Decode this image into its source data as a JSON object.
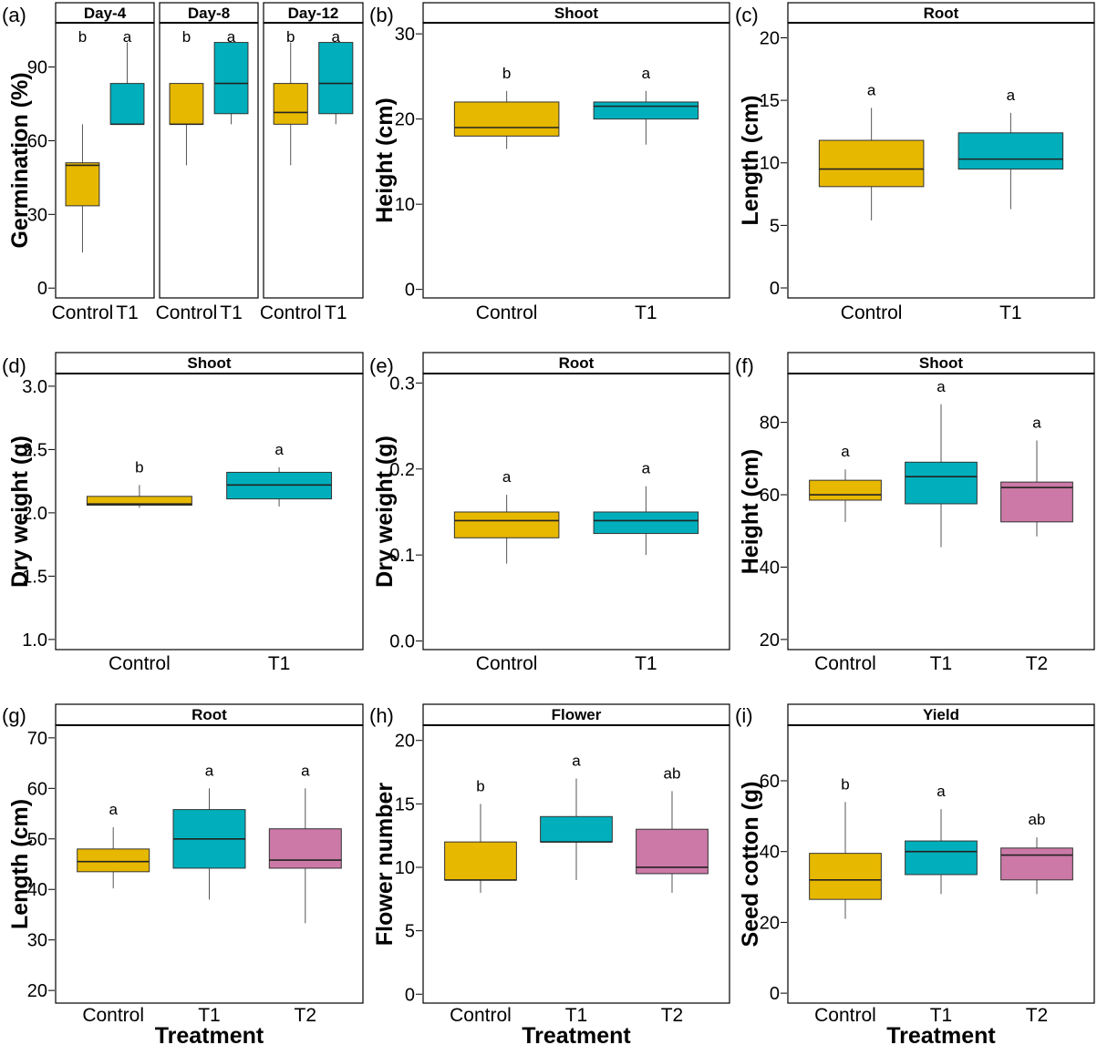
{
  "colors": {
    "Control": "#E7B800",
    "T1": "#00AFBB",
    "T2": "#CC79A7"
  },
  "panels": [
    {
      "id": "a",
      "tag": "(a)",
      "ylabel": "Germination (%)",
      "xlabel": "",
      "yticks": [
        0,
        30,
        60,
        90
      ],
      "ylim": [
        -4,
        108
      ],
      "facets": [
        {
          "strip": "Day-4",
          "categories": [
            "Control",
            "T1"
          ],
          "boxes": [
            {
              "group": "Control",
              "min": 14.5,
              "q1": 33.5,
              "median": 50,
              "q3": 51,
              "max": 66.7,
              "letter": "b"
            },
            {
              "group": "T1",
              "min": 66.7,
              "q1": 66.7,
              "median": 66.7,
              "q3": 83.3,
              "max": 100,
              "letter": "a"
            }
          ]
        },
        {
          "strip": "Day-8",
          "categories": [
            "Control",
            "T1"
          ],
          "boxes": [
            {
              "group": "Control",
              "min": 50,
              "q1": 66.7,
              "median": 66.7,
              "q3": 83.3,
              "max": 83.3,
              "letter": "b"
            },
            {
              "group": "T1",
              "min": 66.7,
              "q1": 71,
              "median": 83.3,
              "q3": 100,
              "max": 100,
              "letter": "a"
            }
          ]
        },
        {
          "strip": "Day-12",
          "categories": [
            "Control",
            "T1"
          ],
          "boxes": [
            {
              "group": "Control",
              "min": 50,
              "q1": 66.7,
              "median": 71.5,
              "q3": 83.3,
              "max": 100,
              "letter": "b"
            },
            {
              "group": "T1",
              "min": 66.7,
              "q1": 71,
              "median": 83.3,
              "q3": 100,
              "max": 100,
              "letter": "a"
            }
          ]
        }
      ]
    },
    {
      "id": "b",
      "tag": "(b)",
      "ylabel": "Height (cm)",
      "xlabel": "",
      "yticks": [
        0,
        10,
        20,
        30
      ],
      "ylim": [
        -1,
        31.3
      ],
      "facets": [
        {
          "strip": "Shoot",
          "categories": [
            "Control",
            "T1"
          ],
          "boxes": [
            {
              "group": "Control",
              "min": 16.5,
              "q1": 18,
              "median": 19,
              "q3": 22,
              "max": 23.3,
              "letter": "b"
            },
            {
              "group": "T1",
              "min": 17,
              "q1": 20,
              "median": 21.5,
              "q3": 22,
              "max": 23.3,
              "letter": "a"
            }
          ]
        }
      ]
    },
    {
      "id": "c",
      "tag": "(c)",
      "ylabel": "Length (cm)",
      "xlabel": "",
      "yticks": [
        0,
        5,
        10,
        15,
        20
      ],
      "ylim": [
        -0.8,
        21.2
      ],
      "facets": [
        {
          "strip": "Root",
          "categories": [
            "Control",
            "T1"
          ],
          "boxes": [
            {
              "group": "Control",
              "min": 5.4,
              "q1": 8.1,
              "median": 9.5,
              "q3": 11.8,
              "max": 14.4,
              "letter": "a"
            },
            {
              "group": "T1",
              "min": 6.3,
              "q1": 9.5,
              "median": 10.3,
              "q3": 12.4,
              "max": 14,
              "letter": "a"
            }
          ]
        }
      ]
    },
    {
      "id": "d",
      "tag": "(d)",
      "ylabel": "Dry weight (g)",
      "xlabel": "",
      "yticks": [
        1.0,
        1.5,
        2.0,
        2.5,
        3.0
      ],
      "ylim": [
        0.92,
        3.1
      ],
      "facets": [
        {
          "strip": "Shoot",
          "categories": [
            "Control",
            "T1"
          ],
          "boxes": [
            {
              "group": "Control",
              "min": 2.04,
              "q1": 2.06,
              "median": 2.07,
              "q3": 2.13,
              "max": 2.22,
              "letter": "b"
            },
            {
              "group": "T1",
              "min": 2.05,
              "q1": 2.11,
              "median": 2.22,
              "q3": 2.32,
              "max": 2.36,
              "letter": "a"
            }
          ]
        }
      ]
    },
    {
      "id": "e",
      "tag": "(e)",
      "ylabel": "Dry weight (g)",
      "xlabel": "",
      "yticks": [
        0.0,
        0.1,
        0.2,
        0.3
      ],
      "ylim": [
        -0.01,
        0.311
      ],
      "facets": [
        {
          "strip": "Root",
          "categories": [
            "Control",
            "T1"
          ],
          "boxes": [
            {
              "group": "Control",
              "min": 0.09,
              "q1": 0.12,
              "median": 0.14,
              "q3": 0.15,
              "max": 0.17,
              "letter": "a"
            },
            {
              "group": "T1",
              "min": 0.1,
              "q1": 0.125,
              "median": 0.14,
              "q3": 0.15,
              "max": 0.18,
              "letter": "a"
            }
          ]
        }
      ]
    },
    {
      "id": "f",
      "tag": "(f)",
      "ylabel": "Height (cm)",
      "xlabel": "",
      "yticks": [
        20,
        40,
        60,
        80
      ],
      "ylim": [
        17.2,
        93.5
      ],
      "facets": [
        {
          "strip": "Shoot",
          "categories": [
            "Control",
            "T1",
            "T2"
          ],
          "boxes": [
            {
              "group": "Control",
              "min": 52.5,
              "q1": 58.5,
              "median": 60,
              "q3": 64,
              "max": 67,
              "letter": "a"
            },
            {
              "group": "T1",
              "min": 45.5,
              "q1": 57.5,
              "median": 65,
              "q3": 69,
              "max": 85,
              "letter": "a"
            },
            {
              "group": "T2",
              "min": 48.5,
              "q1": 52.5,
              "median": 62,
              "q3": 63.5,
              "max": 75,
              "letter": "a"
            }
          ]
        }
      ]
    },
    {
      "id": "g",
      "tag": "(g)",
      "ylabel": "Length (cm)",
      "xlabel": "Treatment",
      "yticks": [
        20,
        30,
        40,
        50,
        60,
        70
      ],
      "ylim": [
        17.5,
        72.5
      ],
      "facets": [
        {
          "strip": "Root",
          "categories": [
            "Control",
            "T1",
            "T2"
          ],
          "boxes": [
            {
              "group": "Control",
              "min": 40.2,
              "q1": 43.5,
              "median": 45.5,
              "q3": 48,
              "max": 52.3,
              "letter": "a"
            },
            {
              "group": "T1",
              "min": 38,
              "q1": 44.2,
              "median": 50,
              "q3": 55.8,
              "max": 60,
              "letter": "a"
            },
            {
              "group": "T2",
              "min": 33.3,
              "q1": 44.2,
              "median": 45.8,
              "q3": 52,
              "max": 60,
              "letter": "a"
            }
          ]
        }
      ]
    },
    {
      "id": "h",
      "tag": "(h)",
      "ylabel": "Flower number",
      "xlabel": "Treatment",
      "yticks": [
        0,
        5,
        10,
        15,
        20
      ],
      "ylim": [
        -0.7,
        21.2
      ],
      "facets": [
        {
          "strip": "Flower",
          "categories": [
            "Control",
            "T1",
            "T2"
          ],
          "boxes": [
            {
              "group": "Control",
              "min": 8,
              "q1": 9,
              "median": 9,
              "q3": 12,
              "max": 15,
              "letter": "b"
            },
            {
              "group": "T1",
              "min": 9,
              "q1": 12,
              "median": 12,
              "q3": 14,
              "max": 17,
              "letter": "a"
            },
            {
              "group": "T2",
              "min": 8,
              "q1": 9.5,
              "median": 10,
              "q3": 13,
              "max": 16,
              "letter": "ab"
            }
          ]
        }
      ]
    },
    {
      "id": "i",
      "tag": "(i)",
      "ylabel": "Seed cotton (g)",
      "xlabel": "Treatment",
      "yticks": [
        0,
        20,
        40,
        60
      ],
      "ylim": [
        -2.8,
        75.7
      ],
      "facets": [
        {
          "strip": "Yield",
          "categories": [
            "Control",
            "T1",
            "T2"
          ],
          "boxes": [
            {
              "group": "Control",
              "min": 21,
              "q1": 26.5,
              "median": 32,
              "q3": 39.5,
              "max": 54,
              "letter": "b"
            },
            {
              "group": "T1",
              "min": 28,
              "q1": 33.5,
              "median": 40,
              "q3": 43,
              "max": 52,
              "letter": "a"
            },
            {
              "group": "T2",
              "min": 28,
              "q1": 32,
              "median": 39,
              "q3": 41,
              "max": 44,
              "letter": "ab"
            }
          ]
        }
      ]
    }
  ],
  "chart_data": [
    {
      "type": "box",
      "panel": "(a)",
      "ylabel": "Germination (%)",
      "ylim": [
        -4,
        108
      ],
      "facets": [
        "Day-4",
        "Day-8",
        "Day-12"
      ],
      "categories": [
        "Control",
        "T1"
      ],
      "series": [
        {
          "name": "Day-4",
          "Control": {
            "min": 14.5,
            "q1": 33.5,
            "median": 50,
            "q3": 51,
            "max": 66.7
          },
          "T1": {
            "min": 66.7,
            "q1": 66.7,
            "median": 66.7,
            "q3": 83.3,
            "max": 100
          }
        },
        {
          "name": "Day-8",
          "Control": {
            "min": 50,
            "q1": 66.7,
            "median": 66.7,
            "q3": 83.3,
            "max": 83.3
          },
          "T1": {
            "min": 66.7,
            "q1": 71,
            "median": 83.3,
            "q3": 100,
            "max": 100
          }
        },
        {
          "name": "Day-12",
          "Control": {
            "min": 50,
            "q1": 66.7,
            "median": 71.5,
            "q3": 83.3,
            "max": 100
          },
          "T1": {
            "min": 66.7,
            "q1": 71,
            "median": 83.3,
            "q3": 100,
            "max": 100
          }
        }
      ]
    },
    {
      "type": "box",
      "panel": "(b)",
      "title": "Shoot",
      "ylabel": "Height (cm)",
      "categories": [
        "Control",
        "T1"
      ],
      "medians": [
        19,
        21.5
      ]
    },
    {
      "type": "box",
      "panel": "(c)",
      "title": "Root",
      "ylabel": "Length (cm)",
      "categories": [
        "Control",
        "T1"
      ],
      "medians": [
        9.5,
        10.3
      ]
    },
    {
      "type": "box",
      "panel": "(d)",
      "title": "Shoot",
      "ylabel": "Dry weight (g)",
      "categories": [
        "Control",
        "T1"
      ],
      "medians": [
        2.07,
        2.22
      ]
    },
    {
      "type": "box",
      "panel": "(e)",
      "title": "Root",
      "ylabel": "Dry weight (g)",
      "categories": [
        "Control",
        "T1"
      ],
      "medians": [
        0.14,
        0.14
      ]
    },
    {
      "type": "box",
      "panel": "(f)",
      "title": "Shoot",
      "ylabel": "Height (cm)",
      "categories": [
        "Control",
        "T1",
        "T2"
      ],
      "medians": [
        60,
        65,
        62
      ]
    },
    {
      "type": "box",
      "panel": "(g)",
      "title": "Root",
      "ylabel": "Length (cm)",
      "xlabel": "Treatment",
      "categories": [
        "Control",
        "T1",
        "T2"
      ],
      "medians": [
        45.5,
        50,
        45.8
      ]
    },
    {
      "type": "box",
      "panel": "(h)",
      "title": "Flower",
      "ylabel": "Flower number",
      "xlabel": "Treatment",
      "categories": [
        "Control",
        "T1",
        "T2"
      ],
      "medians": [
        9,
        12,
        10
      ]
    },
    {
      "type": "box",
      "panel": "(i)",
      "title": "Yield",
      "ylabel": "Seed cotton (g)",
      "xlabel": "Treatment",
      "categories": [
        "Control",
        "T1",
        "T2"
      ],
      "medians": [
        32,
        40,
        39
      ]
    }
  ]
}
